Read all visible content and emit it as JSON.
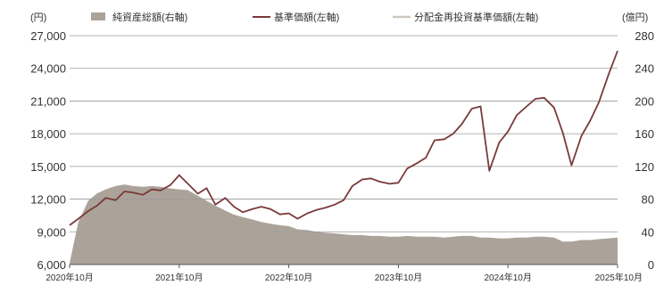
{
  "chart_data": {
    "type": "line",
    "title": "",
    "left_axis": {
      "unit": "(円)",
      "ylim": [
        6000,
        27000
      ],
      "ticks": [
        "6,000",
        "9,000",
        "12,000",
        "15,000",
        "18,000",
        "21,000",
        "24,000",
        "27,000"
      ],
      "tick_values": [
        6000,
        9000,
        12000,
        15000,
        18000,
        21000,
        24000,
        27000
      ]
    },
    "right_axis": {
      "unit": "(億円)",
      "ylim": [
        0,
        280
      ],
      "ticks": [
        "0",
        "40",
        "80",
        "120",
        "160",
        "200",
        "240",
        "280"
      ],
      "tick_values": [
        0,
        40,
        80,
        120,
        160,
        200,
        240,
        280
      ]
    },
    "x_axis": {
      "xlim": [
        2020.75,
        2025.75
      ],
      "ticks": [
        "2020年10月",
        "2021年10月",
        "2022年10月",
        "2023年10月",
        "2024年10月",
        "2025年10月"
      ],
      "tick_values": [
        2020.75,
        2021.75,
        2022.75,
        2023.75,
        2024.75,
        2025.75
      ]
    },
    "grid": "horizontal",
    "legend": {
      "placement": "top",
      "items": [
        {
          "label": "純資産総額(右軸)",
          "kind": "area",
          "color": "#aba39a"
        },
        {
          "label": "基準価額(左軸)",
          "kind": "line",
          "color": "#7a3a3a"
        },
        {
          "label": "分配金再投資基準価額(左軸)",
          "kind": "line",
          "color": "#cfc7bd"
        }
      ]
    },
    "series": [
      {
        "name": "基準価額(左軸)",
        "axis": "left",
        "color": "#7a3a3a",
        "x": [
          2020.75,
          2020.83,
          2020.92,
          2021.0,
          2021.08,
          2021.17,
          2021.25,
          2021.33,
          2021.42,
          2021.5,
          2021.58,
          2021.67,
          2021.75,
          2021.83,
          2021.92,
          2022.0,
          2022.08,
          2022.17,
          2022.25,
          2022.33,
          2022.42,
          2022.5,
          2022.58,
          2022.67,
          2022.75,
          2022.83,
          2022.92,
          2023.0,
          2023.08,
          2023.17,
          2023.25,
          2023.33,
          2023.42,
          2023.5,
          2023.58,
          2023.67,
          2023.75,
          2023.83,
          2023.92,
          2024.0,
          2024.08,
          2024.17,
          2024.25,
          2024.33,
          2024.42,
          2024.5,
          2024.58,
          2024.67,
          2024.75,
          2024.83,
          2024.92,
          2025.0,
          2025.08,
          2025.17,
          2025.25,
          2025.33,
          2025.42,
          2025.5,
          2025.58,
          2025.67,
          2025.75
        ],
        "values": [
          9600,
          10200,
          10900,
          11400,
          12100,
          11900,
          12700,
          12600,
          12400,
          12900,
          12800,
          13300,
          14200,
          13400,
          12500,
          13000,
          11500,
          12100,
          11300,
          10800,
          11100,
          11300,
          11100,
          10600,
          10700,
          10200,
          10700,
          11000,
          11200,
          11500,
          11900,
          13200,
          13800,
          13900,
          13600,
          13400,
          13500,
          14800,
          15300,
          15800,
          17400,
          17500,
          18000,
          18900,
          20300,
          20500,
          14600,
          17200,
          18200,
          19700,
          20500,
          21200,
          21300,
          20400,
          18100,
          15100,
          17800,
          19200,
          20900,
          23500,
          25600
        ]
      }
    ],
    "area_series": {
      "name": "純資産総額(右軸)",
      "axis": "right",
      "color": "#aba39a",
      "x": [
        2020.75,
        2020.83,
        2020.92,
        2021.0,
        2021.08,
        2021.17,
        2021.25,
        2021.33,
        2021.42,
        2021.5,
        2021.58,
        2021.67,
        2021.75,
        2021.83,
        2021.92,
        2022.0,
        2022.08,
        2022.17,
        2022.25,
        2022.33,
        2022.42,
        2022.5,
        2022.58,
        2022.67,
        2022.75,
        2022.83,
        2022.92,
        2023.0,
        2023.08,
        2023.17,
        2023.25,
        2023.33,
        2023.42,
        2023.5,
        2023.58,
        2023.67,
        2023.75,
        2023.83,
        2023.92,
        2024.0,
        2024.08,
        2024.17,
        2024.25,
        2024.33,
        2024.42,
        2024.5,
        2024.58,
        2024.67,
        2024.75,
        2024.83,
        2024.92,
        2025.0,
        2025.08,
        2025.17,
        2025.25,
        2025.33,
        2025.42,
        2025.5,
        2025.58,
        2025.67,
        2025.75
      ],
      "values": [
        2,
        52,
        78,
        87,
        92,
        96,
        98,
        96,
        95,
        96,
        95,
        93,
        92,
        91,
        84,
        78,
        72,
        66,
        61,
        58,
        55,
        52,
        50,
        48,
        47,
        43,
        42,
        40,
        39,
        38,
        37,
        36,
        36,
        35,
        35,
        34,
        34,
        35,
        34,
        34,
        34,
        33,
        34,
        35,
        35,
        33,
        33,
        32,
        32,
        33,
        33,
        34,
        34,
        33,
        28,
        28,
        30,
        30,
        31,
        32,
        33
      ]
    }
  }
}
